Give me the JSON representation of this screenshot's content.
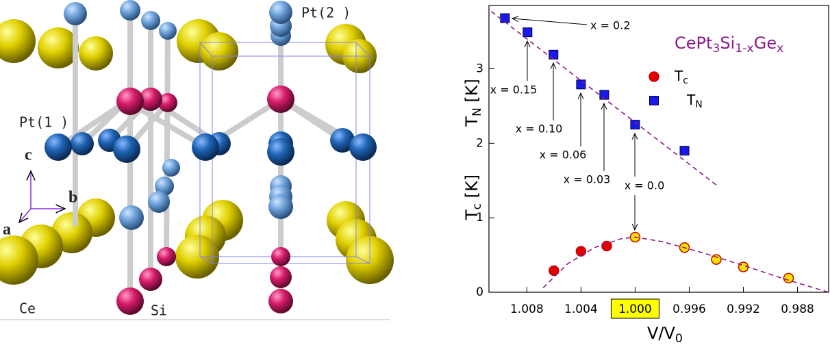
{
  "structure": {
    "labels": [
      "Pt(2 )",
      "Pt(1 )",
      "c",
      "b",
      "a",
      "Ce",
      "Si"
    ]
  },
  "chart_data": {
    "type": "scatter",
    "title_parts": [
      "CePt",
      "3",
      "Si",
      "1-x",
      "Ge",
      "x"
    ],
    "title_color": "#8b1a8b",
    "x_label_parts": [
      "V/V",
      "0"
    ],
    "y_label_parts": [
      [
        "T",
        "N",
        " [K]"
      ],
      [
        "T",
        "c",
        " [K]"
      ]
    ],
    "xlim": [
      1.0108,
      0.9857
    ],
    "ylim": [
      0,
      3.85
    ],
    "xticks": [
      1.008,
      1.004,
      {
        "value": 1.0,
        "label": "1.000",
        "highlight": "#ffff00"
      },
      0.996,
      0.992,
      0.988
    ],
    "yticks": [
      0,
      1,
      2,
      3
    ],
    "series": [
      {
        "name": "Tc",
        "marker": "circle",
        "color": "#cc0000",
        "face_colors": [
          "#e00000",
          "#e00000",
          "#e00000",
          "#f5e400",
          "#f5e400",
          "#f5e400",
          "#f5e400",
          "#f5e400"
        ],
        "x": [
          1.006,
          1.004,
          1.0021,
          1.0,
          0.99635,
          0.994,
          0.992,
          0.98866
        ],
        "values": [
          0.29,
          0.55,
          0.62,
          0.74,
          0.6,
          0.44,
          0.34,
          0.19
        ]
      },
      {
        "name": "TN",
        "marker": "square",
        "color": "#1a1ae6",
        "x": [
          1.00962,
          1.00795,
          1.00603,
          1.004,
          1.00228,
          1.0,
          0.99635
        ],
        "values": [
          3.68,
          3.49,
          3.19,
          2.79,
          2.65,
          2.25,
          1.9
        ]
      },
      {
        "marker": "dashed-line",
        "color": "#8b1a8b",
        "x": [
          1.0068,
          1.005,
          1.003,
          1.001,
          1.0,
          0.998,
          0.995,
          0.992,
          0.989,
          0.9857
        ],
        "values": [
          0.06,
          0.38,
          0.6,
          0.72,
          0.74,
          0.68,
          0.53,
          0.36,
          0.18,
          0.0
        ]
      },
      {
        "marker": "dashed-line",
        "color": "#8b1a8b",
        "x": [
          1.01063,
          0.994
        ],
        "values": [
          3.77,
          1.44
        ]
      }
    ],
    "annotations": [
      "x = 0.2",
      "x = 0.15",
      "x = 0.10",
      "x = 0.06",
      "x = 0.03",
      "x = 0.0"
    ]
  }
}
